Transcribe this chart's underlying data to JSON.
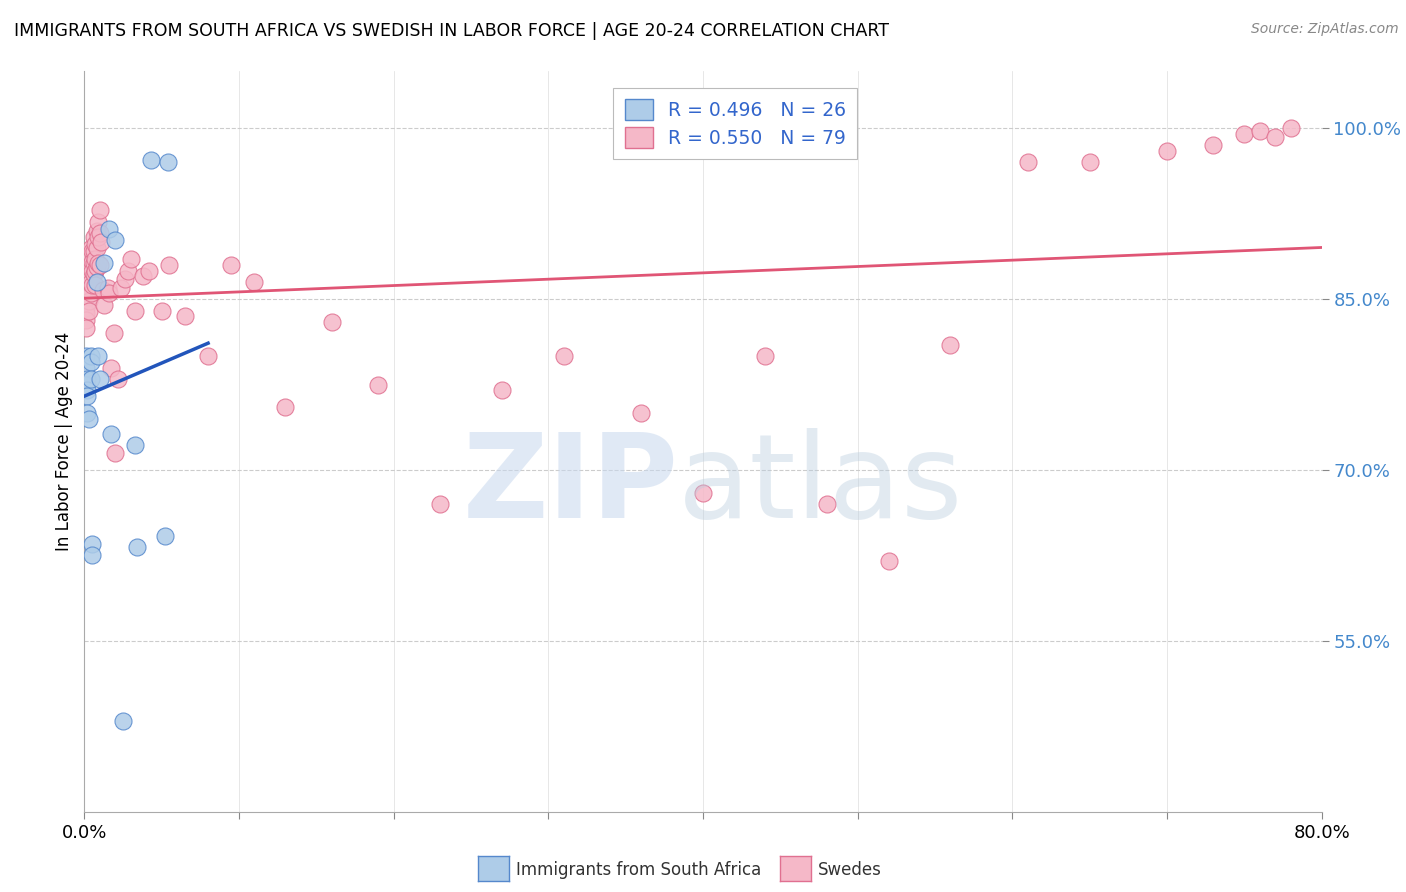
{
  "title": "IMMIGRANTS FROM SOUTH AFRICA VS SWEDISH IN LABOR FORCE | AGE 20-24 CORRELATION CHART",
  "source": "Source: ZipAtlas.com",
  "ylabel": "In Labor Force | Age 20-24",
  "x_min": 0.0,
  "x_max": 0.8,
  "y_min": 0.4,
  "y_max": 1.05,
  "x_ticks": [
    0.0,
    0.1,
    0.2,
    0.3,
    0.4,
    0.5,
    0.6,
    0.7,
    0.8
  ],
  "x_tick_labels": [
    "0.0%",
    "",
    "",
    "",
    "",
    "",
    "",
    "",
    "80.0%"
  ],
  "y_ticks": [
    0.55,
    0.7,
    0.85,
    1.0
  ],
  "y_tick_labels": [
    "55.0%",
    "70.0%",
    "85.0%",
    "100.0%"
  ],
  "blue_R": 0.496,
  "blue_N": 26,
  "pink_R": 0.55,
  "pink_N": 79,
  "blue_face_color": "#aecce8",
  "pink_face_color": "#f5b8c8",
  "blue_edge_color": "#5588cc",
  "pink_edge_color": "#e07090",
  "blue_line_color": "#2255bb",
  "pink_line_color": "#e05575",
  "blue_x": [
    0.001,
    0.001,
    0.001,
    0.002,
    0.002,
    0.002,
    0.002,
    0.003,
    0.004,
    0.004,
    0.004,
    0.005,
    0.005,
    0.008,
    0.009,
    0.01,
    0.013,
    0.016,
    0.017,
    0.02,
    0.025,
    0.033,
    0.034,
    0.043,
    0.052,
    0.054
  ],
  "blue_y": [
    0.8,
    0.79,
    0.775,
    0.78,
    0.77,
    0.765,
    0.75,
    0.745,
    0.8,
    0.795,
    0.78,
    0.635,
    0.625,
    0.865,
    0.8,
    0.78,
    0.882,
    0.912,
    0.732,
    0.902,
    0.48,
    0.722,
    0.632,
    0.972,
    0.642,
    0.97
  ],
  "pink_x": [
    0.001,
    0.001,
    0.001,
    0.001,
    0.002,
    0.002,
    0.003,
    0.003,
    0.003,
    0.003,
    0.003,
    0.004,
    0.004,
    0.004,
    0.004,
    0.004,
    0.005,
    0.005,
    0.005,
    0.005,
    0.006,
    0.006,
    0.006,
    0.006,
    0.007,
    0.007,
    0.007,
    0.007,
    0.008,
    0.008,
    0.008,
    0.009,
    0.009,
    0.009,
    0.01,
    0.01,
    0.01,
    0.011,
    0.012,
    0.013,
    0.015,
    0.016,
    0.017,
    0.019,
    0.02,
    0.022,
    0.024,
    0.026,
    0.028,
    0.03,
    0.033,
    0.038,
    0.042,
    0.05,
    0.055,
    0.065,
    0.08,
    0.095,
    0.11,
    0.13,
    0.16,
    0.19,
    0.23,
    0.27,
    0.31,
    0.36,
    0.4,
    0.44,
    0.48,
    0.52,
    0.56,
    0.61,
    0.65,
    0.7,
    0.73,
    0.75,
    0.76,
    0.77,
    0.78
  ],
  "pink_y": [
    0.842,
    0.838,
    0.832,
    0.825,
    0.87,
    0.86,
    0.868,
    0.858,
    0.852,
    0.848,
    0.84,
    0.895,
    0.888,
    0.878,
    0.865,
    0.855,
    0.892,
    0.883,
    0.875,
    0.862,
    0.905,
    0.892,
    0.882,
    0.872,
    0.898,
    0.885,
    0.875,
    0.862,
    0.91,
    0.895,
    0.878,
    0.918,
    0.905,
    0.882,
    0.928,
    0.908,
    0.88,
    0.9,
    0.858,
    0.845,
    0.86,
    0.855,
    0.79,
    0.82,
    0.715,
    0.78,
    0.86,
    0.868,
    0.875,
    0.885,
    0.84,
    0.87,
    0.875,
    0.84,
    0.88,
    0.835,
    0.8,
    0.88,
    0.865,
    0.755,
    0.83,
    0.775,
    0.67,
    0.77,
    0.8,
    0.75,
    0.68,
    0.8,
    0.67,
    0.62,
    0.81,
    0.97,
    0.97,
    0.98,
    0.985,
    0.995,
    0.998,
    0.992,
    1.0
  ]
}
